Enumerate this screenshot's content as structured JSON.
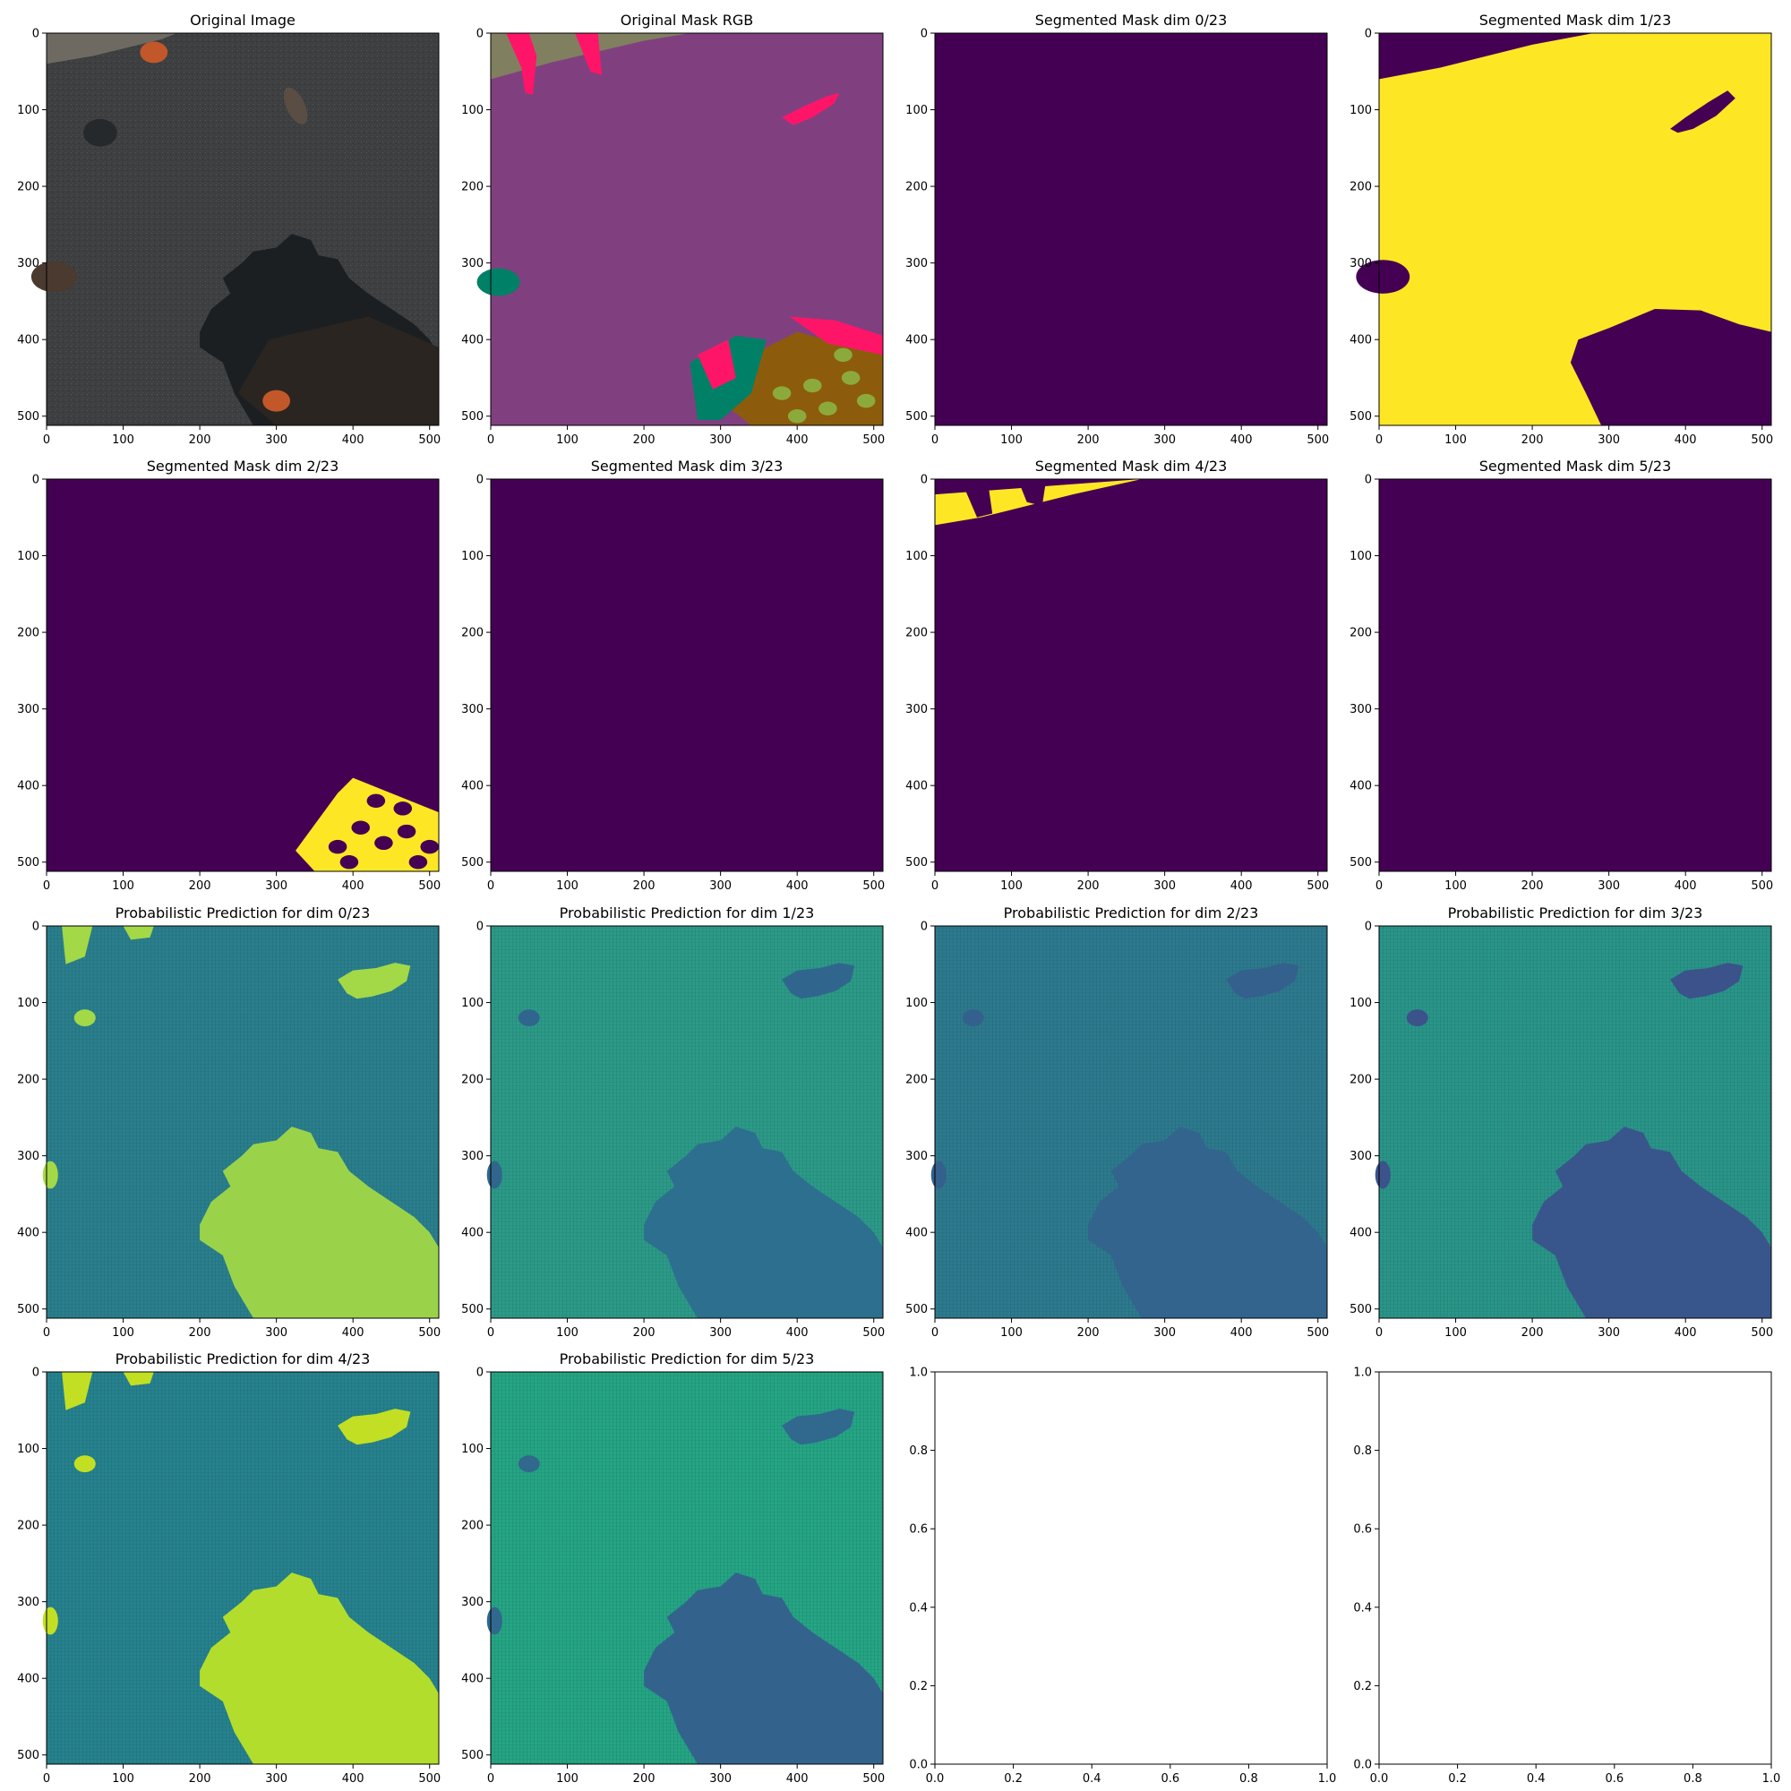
{
  "figure": {
    "grid": "4x4",
    "colormap": "viridis",
    "colors": {
      "viridis_low": "#440154",
      "viridis_high": "#fde725",
      "road": "#804080",
      "person": "#ff1568",
      "vegetation": "#008066",
      "gravel": "#808060",
      "grass_dirt": "#8c5c0c",
      "grass_patch": "#8caa3c"
    }
  },
  "chart_data": [
    {
      "type": "image",
      "title": "Original Image",
      "xlim": [
        0,
        512
      ],
      "ylim": [
        512,
        0
      ],
      "xticks": [
        "0",
        "100",
        "200",
        "300",
        "400",
        "500"
      ],
      "yticks": [
        "0",
        "100",
        "200",
        "300",
        "400",
        "500"
      ],
      "render": "photo"
    },
    {
      "type": "image",
      "title": "Original Mask RGB",
      "xlim": [
        0,
        512
      ],
      "ylim": [
        512,
        0
      ],
      "xticks": [
        "0",
        "100",
        "200",
        "300",
        "400",
        "500"
      ],
      "yticks": [
        "0",
        "100",
        "200",
        "300",
        "400",
        "500"
      ],
      "render": "rgbmask"
    },
    {
      "type": "heatmap",
      "title": "Segmented Mask dim 0/23",
      "xlim": [
        0,
        512
      ],
      "ylim": [
        512,
        0
      ],
      "xticks": [
        "0",
        "100",
        "200",
        "300",
        "400",
        "500"
      ],
      "yticks": [
        "0",
        "100",
        "200",
        "300",
        "400",
        "500"
      ],
      "render": "empty"
    },
    {
      "type": "heatmap",
      "title": "Segmented Mask dim 1/23",
      "xlim": [
        0,
        512
      ],
      "ylim": [
        512,
        0
      ],
      "xticks": [
        "0",
        "100",
        "200",
        "300",
        "400",
        "500"
      ],
      "yticks": [
        "0",
        "100",
        "200",
        "300",
        "400",
        "500"
      ],
      "render": "road"
    },
    {
      "type": "heatmap",
      "title": "Segmented Mask dim 2/23",
      "xlim": [
        0,
        512
      ],
      "ylim": [
        512,
        0
      ],
      "xticks": [
        "0",
        "100",
        "200",
        "300",
        "400",
        "500"
      ],
      "yticks": [
        "0",
        "100",
        "200",
        "300",
        "400",
        "500"
      ],
      "render": "patch"
    },
    {
      "type": "heatmap",
      "title": "Segmented Mask dim 3/23",
      "xlim": [
        0,
        512
      ],
      "ylim": [
        512,
        0
      ],
      "xticks": [
        "0",
        "100",
        "200",
        "300",
        "400",
        "500"
      ],
      "yticks": [
        "0",
        "100",
        "200",
        "300",
        "400",
        "500"
      ],
      "render": "empty"
    },
    {
      "type": "heatmap",
      "title": "Segmented Mask dim 4/23",
      "xlim": [
        0,
        512
      ],
      "ylim": [
        512,
        0
      ],
      "xticks": [
        "0",
        "100",
        "200",
        "300",
        "400",
        "500"
      ],
      "yticks": [
        "0",
        "100",
        "200",
        "300",
        "400",
        "500"
      ],
      "render": "strip"
    },
    {
      "type": "heatmap",
      "title": "Segmented Mask dim 5/23",
      "xlim": [
        0,
        512
      ],
      "ylim": [
        512,
        0
      ],
      "xticks": [
        "0",
        "100",
        "200",
        "300",
        "400",
        "500"
      ],
      "yticks": [
        "0",
        "100",
        "200",
        "300",
        "400",
        "500"
      ],
      "render": "empty"
    },
    {
      "type": "heatmap",
      "title": "Probabilistic Prediction for dim 0/23",
      "xlim": [
        0,
        512
      ],
      "ylim": [
        512,
        0
      ],
      "xticks": [
        "0",
        "100",
        "200",
        "300",
        "400",
        "500"
      ],
      "yticks": [
        "0",
        "100",
        "200",
        "300",
        "400",
        "500"
      ],
      "render": "prob",
      "base": "#2a7f8d",
      "tree": "#9ad34a",
      "fig": "#a3d847",
      "mode": "bright"
    },
    {
      "type": "heatmap",
      "title": "Probabilistic Prediction for dim 1/23",
      "xlim": [
        0,
        512
      ],
      "ylim": [
        512,
        0
      ],
      "xticks": [
        "0",
        "100",
        "200",
        "300",
        "400",
        "500"
      ],
      "yticks": [
        "0",
        "100",
        "200",
        "300",
        "400",
        "500"
      ],
      "render": "prob",
      "base": "#2c9a88",
      "tree": "#2d6f8e",
      "fig": "#30668d",
      "mode": "dark"
    },
    {
      "type": "heatmap",
      "title": "Probabilistic Prediction for dim 2/23",
      "xlim": [
        0,
        512
      ],
      "ylim": [
        512,
        0
      ],
      "xticks": [
        "0",
        "100",
        "200",
        "300",
        "400",
        "500"
      ],
      "yticks": [
        "0",
        "100",
        "200",
        "300",
        "400",
        "500"
      ],
      "render": "prob",
      "base": "#2d7a8e",
      "tree": "#32648d",
      "fig": "#34608d",
      "mode": "dark"
    },
    {
      "type": "heatmap",
      "title": "Probabilistic Prediction for dim 3/23",
      "xlim": [
        0,
        512
      ],
      "ylim": [
        512,
        0
      ],
      "xticks": [
        "0",
        "100",
        "200",
        "300",
        "400",
        "500"
      ],
      "yticks": [
        "0",
        "100",
        "200",
        "300",
        "400",
        "500"
      ],
      "render": "prob",
      "base": "#2a9589",
      "tree": "#39568c",
      "fig": "#3b528b",
      "mode": "dark"
    },
    {
      "type": "heatmap",
      "title": "Probabilistic Prediction for dim 4/23",
      "xlim": [
        0,
        512
      ],
      "ylim": [
        512,
        0
      ],
      "xticks": [
        "0",
        "100",
        "200",
        "300",
        "400",
        "500"
      ],
      "yticks": [
        "0",
        "100",
        "200",
        "300",
        "400",
        "500"
      ],
      "render": "prob",
      "base": "#26828e",
      "tree": "#b2dd2d",
      "fig": "#c2df23",
      "mode": "bright"
    },
    {
      "type": "heatmap",
      "title": "Probabilistic Prediction for dim 5/23",
      "xlim": [
        0,
        512
      ],
      "ylim": [
        512,
        0
      ],
      "xticks": [
        "0",
        "100",
        "200",
        "300",
        "400",
        "500"
      ],
      "yticks": [
        "0",
        "100",
        "200",
        "300",
        "400",
        "500"
      ],
      "render": "prob",
      "base": "#25a584",
      "tree": "#33638d",
      "fig": "#31688e",
      "mode": "dark"
    },
    {
      "type": "blank",
      "title": "",
      "xlim": [
        0.0,
        1.0
      ],
      "ylim": [
        0.0,
        1.0
      ],
      "xticks": [
        "0.0",
        "0.2",
        "0.4",
        "0.6",
        "0.8",
        "1.0"
      ],
      "yticks": [
        "0.0",
        "0.2",
        "0.4",
        "0.6",
        "0.8",
        "1.0"
      ],
      "render": "blank"
    },
    {
      "type": "blank",
      "title": "",
      "xlim": [
        0.0,
        1.0
      ],
      "ylim": [
        0.0,
        1.0
      ],
      "xticks": [
        "0.0",
        "0.2",
        "0.4",
        "0.6",
        "0.8",
        "1.0"
      ],
      "yticks": [
        "0.0",
        "0.2",
        "0.4",
        "0.6",
        "0.8",
        "1.0"
      ],
      "render": "blank"
    }
  ]
}
